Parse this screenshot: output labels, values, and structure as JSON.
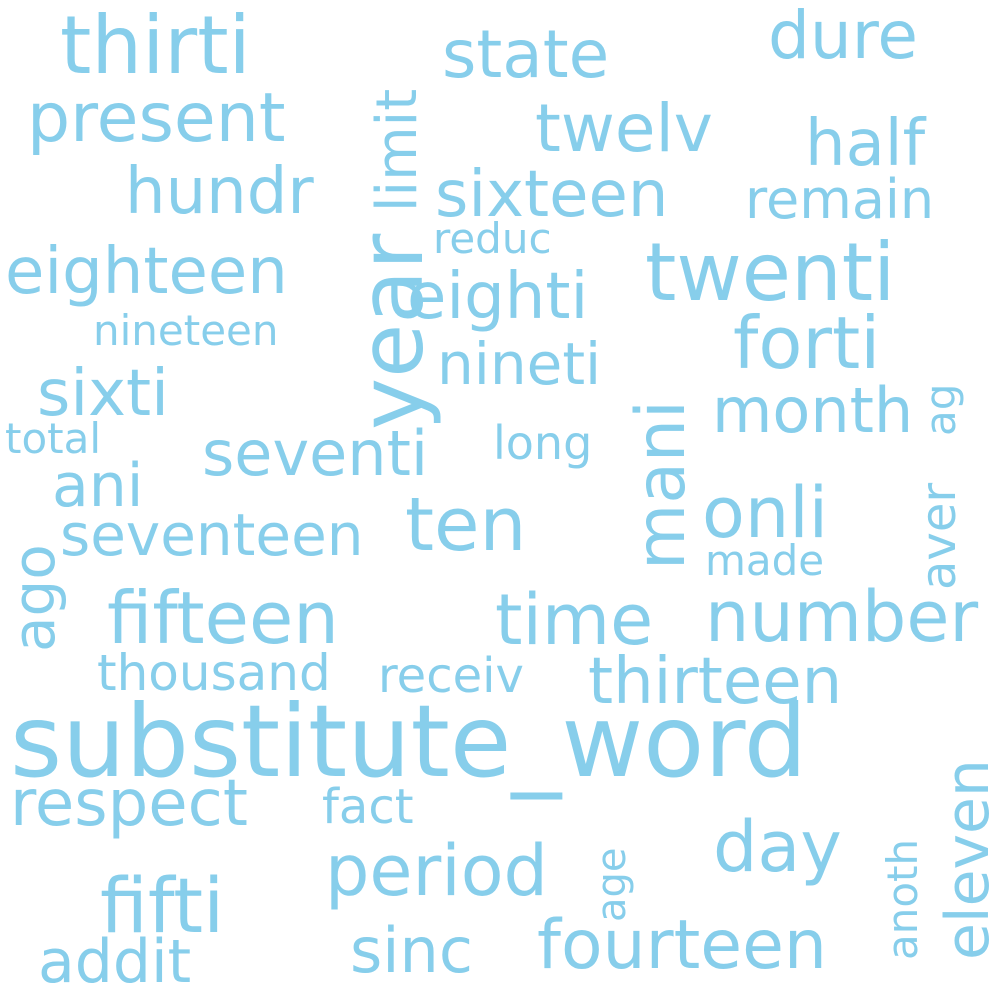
{
  "color": "#87ceeb",
  "words": [
    "substitute_word",
    "year",
    "twenti",
    "thirti",
    "state",
    "dure",
    "present",
    "twelv",
    "limit",
    "half",
    "hundr",
    "sixteen",
    "remain",
    "eighteen",
    "reduc",
    "eighti",
    "forti",
    "nineteen",
    "nineti",
    "sixti",
    "month",
    "mani",
    "ag",
    "total",
    "seventi",
    "long",
    "ani",
    "onli",
    "ten",
    "seventeen",
    "aver",
    "ago",
    "made",
    "fifteen",
    "time",
    "number",
    "thousand",
    "receiv",
    "thirteen",
    "eleven",
    "respect",
    "fact",
    "day",
    "anoth",
    "period",
    "age",
    "fifti",
    "sinc",
    "fourteen",
    "addit"
  ]
}
